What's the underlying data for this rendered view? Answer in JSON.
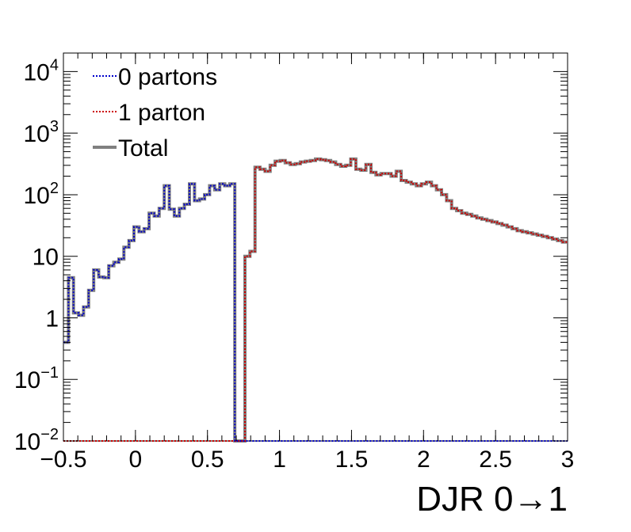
{
  "chart_data": {
    "type": "line",
    "xlabel": "DJR 0→1",
    "ylabel": "",
    "xlim": [
      -0.5,
      3.0
    ],
    "ylim": [
      0.01,
      20000
    ],
    "y_scale": "log",
    "grid": false,
    "legend_position": "top-left",
    "x_ticks": [
      {
        "value": -0.5,
        "label": "−0.5"
      },
      {
        "value": 0,
        "label": "0"
      },
      {
        "value": 0.5,
        "label": "0.5"
      },
      {
        "value": 1,
        "label": "1"
      },
      {
        "value": 1.5,
        "label": "1.5"
      },
      {
        "value": 2,
        "label": "2"
      },
      {
        "value": 2.5,
        "label": "2.5"
      },
      {
        "value": 3,
        "label": "3"
      }
    ],
    "y_ticks": [
      {
        "value": 0.01,
        "base": "10",
        "exp": "−2"
      },
      {
        "value": 0.1,
        "base": "10",
        "exp": "−1"
      },
      {
        "value": 1,
        "base": "1",
        "exp": ""
      },
      {
        "value": 10,
        "base": "10",
        "exp": ""
      },
      {
        "value": 100,
        "base": "10",
        "exp": "2"
      },
      {
        "value": 1000,
        "base": "10",
        "exp": "3"
      },
      {
        "value": 10000,
        "base": "10",
        "exp": "4"
      }
    ],
    "bin_width": 0.035,
    "x_start": -0.5,
    "series": [
      {
        "name": "0 partons",
        "color": "#0000cc",
        "style": "dotted",
        "values": [
          0.4,
          4.5,
          1.2,
          1.1,
          1.5,
          2.8,
          6,
          4.6,
          4.5,
          7,
          8,
          9,
          14,
          18,
          30,
          25,
          28,
          50,
          45,
          60,
          140,
          58,
          45,
          60,
          70,
          150,
          80,
          85,
          100,
          140,
          120,
          150,
          140,
          150,
          0.01,
          0.01,
          0.01,
          0.01,
          0.01,
          0.01,
          0.01,
          0.01,
          0.01,
          0.01,
          0.01,
          0.01,
          0.01,
          0.01,
          0.01,
          0.01,
          0.01,
          0.01,
          0.01,
          0.01,
          0.01,
          0.01,
          0.01,
          0.01,
          0.01,
          0.01,
          0.01,
          0.01,
          0.01,
          0.01,
          0.01,
          0.01,
          0.01,
          0.01,
          0.01,
          0.01,
          0.01,
          0.01,
          0.01,
          0.01,
          0.01,
          0.01,
          0.01,
          0.01,
          0.01,
          0.01,
          0.01,
          0.01,
          0.01,
          0.01,
          0.01,
          0.01,
          0.01,
          0.01,
          0.01,
          0.01,
          0.01,
          0.01,
          0.01,
          0.01,
          0.01,
          0.01,
          0.01,
          0.01,
          0.01,
          0.01
        ]
      },
      {
        "name": "1 parton",
        "color": "#cc0000",
        "style": "dotted",
        "values": [
          0.01,
          0.01,
          0.01,
          0.01,
          0.01,
          0.01,
          0.01,
          0.01,
          0.01,
          0.01,
          0.01,
          0.01,
          0.01,
          0.01,
          0.01,
          0.01,
          0.01,
          0.01,
          0.01,
          0.01,
          0.01,
          0.01,
          0.01,
          0.01,
          0.01,
          0.01,
          0.01,
          0.01,
          0.01,
          0.01,
          0.01,
          0.01,
          0.01,
          0.01,
          0.01,
          0.01,
          10,
          12,
          280,
          260,
          240,
          300,
          350,
          360,
          330,
          310,
          320,
          340,
          350,
          360,
          380,
          370,
          360,
          340,
          310,
          290,
          300,
          380,
          260,
          250,
          310,
          230,
          210,
          220,
          220,
          200,
          240,
          170,
          160,
          150,
          140,
          150,
          160,
          140,
          120,
          100,
          80,
          60,
          55,
          50,
          48,
          45,
          42,
          40,
          38,
          36,
          34,
          32,
          30,
          28,
          26,
          25,
          24,
          23,
          22,
          21,
          20,
          19,
          18,
          17
        ]
      },
      {
        "name": "Total",
        "color": "#808080",
        "style": "solid",
        "values": [
          0.4,
          4.5,
          1.2,
          1.1,
          1.5,
          2.8,
          6,
          4.6,
          4.5,
          7,
          8,
          9,
          14,
          18,
          30,
          25,
          28,
          50,
          45,
          60,
          140,
          58,
          45,
          60,
          70,
          150,
          80,
          85,
          100,
          140,
          120,
          150,
          140,
          150,
          0.01,
          0.01,
          10,
          12,
          280,
          260,
          240,
          300,
          350,
          360,
          330,
          310,
          320,
          340,
          350,
          360,
          380,
          370,
          360,
          340,
          310,
          290,
          300,
          380,
          260,
          250,
          310,
          230,
          210,
          220,
          220,
          200,
          240,
          170,
          160,
          150,
          140,
          150,
          160,
          140,
          120,
          100,
          80,
          60,
          55,
          50,
          48,
          45,
          42,
          40,
          38,
          36,
          34,
          32,
          30,
          28,
          26,
          25,
          24,
          23,
          22,
          21,
          20,
          19,
          18,
          17
        ]
      }
    ]
  }
}
